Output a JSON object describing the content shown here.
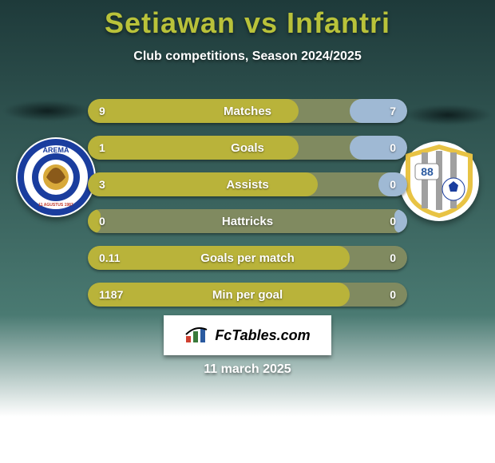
{
  "background": {
    "gradient_top": "#1e3a3a",
    "gradient_bottom": "#4a7a72",
    "bottom_area": "#ffffff"
  },
  "title": {
    "text": "Setiawan vs Infantri",
    "color": "#b9c23a",
    "fontsize": 36,
    "fontweight": 800
  },
  "subtitle": {
    "text": "Club competitions, Season 2024/2025",
    "color": "#ffffff",
    "fontsize": 16
  },
  "colors": {
    "left_bar": "#b9b33a",
    "right_bar": "#9fb9d4",
    "track": "#808a60",
    "value_text": "#ffffff",
    "label_text": "#ffffff"
  },
  "shadow_color": "#0f1f1f",
  "stats": [
    {
      "label": "Matches",
      "left_val": "9",
      "right_val": "7",
      "left_pct": 66,
      "right_pct": 18
    },
    {
      "label": "Goals",
      "left_val": "1",
      "right_val": "0",
      "left_pct": 66,
      "right_pct": 18
    },
    {
      "label": "Assists",
      "left_val": "3",
      "right_val": "0",
      "left_pct": 72,
      "right_pct": 9
    },
    {
      "label": "Hattricks",
      "left_val": "0",
      "right_val": "0",
      "left_pct": 4,
      "right_pct": 4
    },
    {
      "label": "Goals per match",
      "left_val": "0.11",
      "right_val": "0",
      "left_pct": 82,
      "right_pct": 0
    },
    {
      "label": "Min per goal",
      "left_val": "1187",
      "right_val": "0",
      "left_pct": 82,
      "right_pct": 0
    }
  ],
  "logo_left": {
    "bg": "#ffffff",
    "ring": "#1a3d9e",
    "inner": "#d8a93a",
    "text": "AREMA",
    "text_color": "#1a3d9e",
    "sub": "11 AGUSTUS 1987",
    "sub_color": "#c0392b"
  },
  "logo_right": {
    "bg": "#ffffff",
    "ring": "#e8c344",
    "inner_stripe": "#a0a0a0",
    "badge": "88",
    "badge_bg": "#ffffff",
    "badge_text": "#2a5aa0",
    "ball_bg": "#ffffff",
    "ball_fg": "#1a3d9e"
  },
  "fctables": {
    "label": "FcTables.com",
    "icon_bars": [
      "#d04030",
      "#3a7a3a",
      "#2a5aa0"
    ]
  },
  "date": {
    "text": "11 march 2025",
    "color": "#ffffff"
  }
}
